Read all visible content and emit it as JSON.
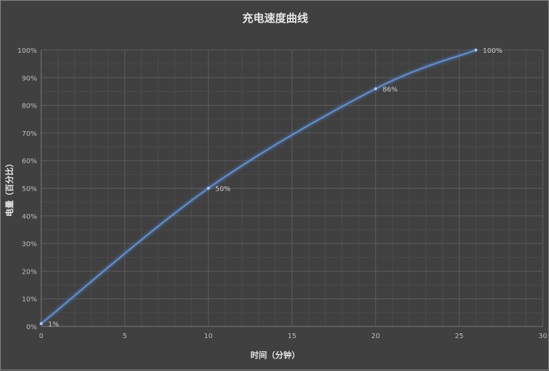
{
  "chart_data": {
    "type": "line",
    "title": "充电速度曲线",
    "xlabel": "时间（分钟）",
    "ylabel": "电量（百分比）",
    "x": [
      0,
      10,
      20,
      26
    ],
    "series": [
      {
        "values": [
          1,
          50,
          86,
          100
        ]
      }
    ],
    "data_labels": [
      "1%",
      "50%",
      "86%",
      "100%"
    ],
    "xlim": [
      0,
      30
    ],
    "ylim": [
      0,
      100
    ],
    "x_ticks": [
      "0",
      "5",
      "10",
      "15",
      "20",
      "25",
      "30"
    ],
    "y_ticks": [
      "0%",
      "10%",
      "20%",
      "30%",
      "40%",
      "50%",
      "60%",
      "70%",
      "80%",
      "90%",
      "100%"
    ],
    "grid": true,
    "smooth": true,
    "colors": {
      "line": "#5b8fd8",
      "background": "#404040",
      "grid": "#555555"
    }
  }
}
